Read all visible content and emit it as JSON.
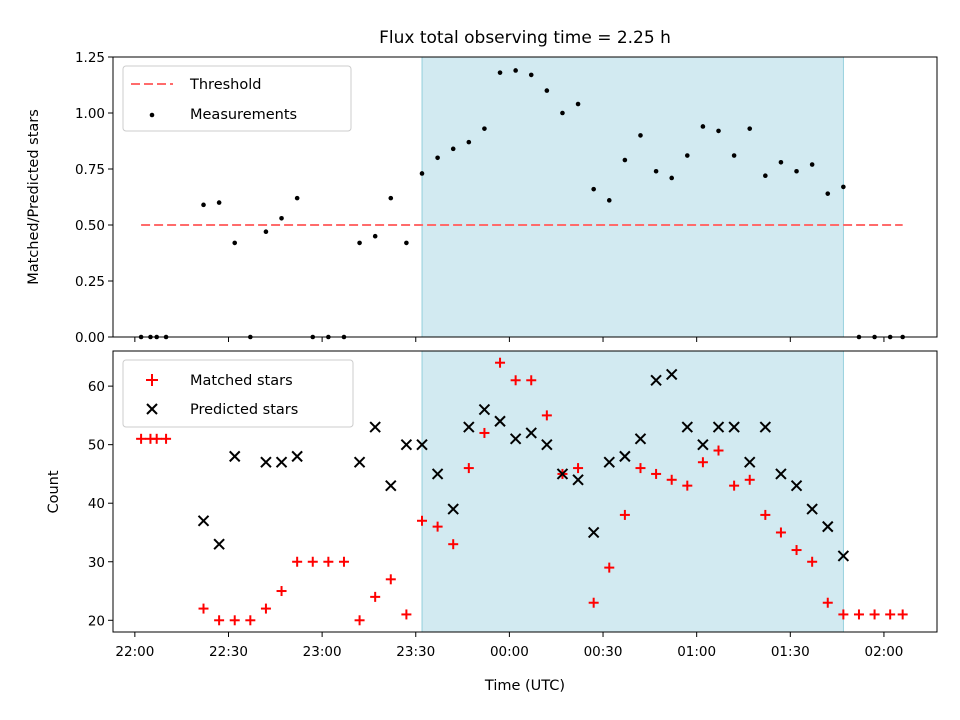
{
  "figure_title": "Flux total observing time = 2.25 h",
  "colors": {
    "shade": "#add8e6",
    "threshold": "#ff6b6b",
    "measurement": "#000000",
    "matched": "#ff0000",
    "predicted": "#000000"
  },
  "chart_data": [
    {
      "type": "scatter",
      "ylabel": "Matched/Predicted stars",
      "ylim": [
        0,
        1.25
      ],
      "yticks": [
        0.0,
        0.25,
        0.5,
        0.75,
        1.0,
        1.25
      ],
      "ytick_labels": [
        "0.00",
        "0.25",
        "0.50",
        "0.75",
        "1.00",
        "1.25"
      ],
      "x_time_range": [
        "21:53",
        "02:17"
      ],
      "xticks": [
        "22:00",
        "22:30",
        "23:00",
        "23:30",
        "00:00",
        "00:30",
        "01:00",
        "01:30",
        "02:00"
      ],
      "shaded_region": [
        "23:32",
        "01:47"
      ],
      "legend_position": "upper left",
      "threshold": {
        "name": "Threshold",
        "value": 0.5,
        "x": [
          "22:02",
          "02:06"
        ]
      },
      "series": [
        {
          "name": "Measurements",
          "marker": "dot",
          "points": [
            [
              "22:02",
              0.0
            ],
            [
              "22:05",
              0.0
            ],
            [
              "22:07",
              0.0
            ],
            [
              "22:10",
              0.0
            ],
            [
              "22:22",
              0.59
            ],
            [
              "22:27",
              0.6
            ],
            [
              "22:32",
              0.42
            ],
            [
              "22:37",
              0.0
            ],
            [
              "22:42",
              0.47
            ],
            [
              "22:47",
              0.53
            ],
            [
              "22:52",
              0.62
            ],
            [
              "22:57",
              0.0
            ],
            [
              "23:02",
              0.0
            ],
            [
              "23:07",
              0.0
            ],
            [
              "23:12",
              0.42
            ],
            [
              "23:17",
              0.45
            ],
            [
              "23:22",
              0.62
            ],
            [
              "23:27",
              0.42
            ],
            [
              "23:32",
              0.73
            ],
            [
              "23:37",
              0.8
            ],
            [
              "23:42",
              0.84
            ],
            [
              "23:47",
              0.87
            ],
            [
              "23:52",
              0.93
            ],
            [
              "23:57",
              1.18
            ],
            [
              "00:02",
              1.19
            ],
            [
              "00:07",
              1.17
            ],
            [
              "00:12",
              1.1
            ],
            [
              "00:17",
              1.0
            ],
            [
              "00:22",
              1.04
            ],
            [
              "00:27",
              0.66
            ],
            [
              "00:32",
              0.61
            ],
            [
              "00:37",
              0.79
            ],
            [
              "00:42",
              0.9
            ],
            [
              "00:47",
              0.74
            ],
            [
              "00:52",
              0.71
            ],
            [
              "00:57",
              0.81
            ],
            [
              "01:02",
              0.94
            ],
            [
              "01:07",
              0.92
            ],
            [
              "01:12",
              0.81
            ],
            [
              "01:17",
              0.93
            ],
            [
              "01:22",
              0.72
            ],
            [
              "01:27",
              0.78
            ],
            [
              "01:32",
              0.74
            ],
            [
              "01:37",
              0.77
            ],
            [
              "01:42",
              0.64
            ],
            [
              "01:47",
              0.67
            ],
            [
              "01:52",
              0.0
            ],
            [
              "01:57",
              0.0
            ],
            [
              "02:02",
              0.0
            ],
            [
              "02:06",
              0.0
            ]
          ]
        }
      ]
    },
    {
      "type": "scatter",
      "xlabel": "Time (UTC)",
      "ylabel": "Count",
      "ylim": [
        18,
        66
      ],
      "yticks": [
        20,
        30,
        40,
        50,
        60
      ],
      "ytick_labels": [
        "20",
        "30",
        "40",
        "50",
        "60"
      ],
      "x_time_range": [
        "21:53",
        "02:17"
      ],
      "xticks": [
        "22:00",
        "22:30",
        "23:00",
        "23:30",
        "00:00",
        "00:30",
        "01:00",
        "01:30",
        "02:00"
      ],
      "shaded_region": [
        "23:32",
        "01:47"
      ],
      "legend_position": "upper left",
      "series": [
        {
          "name": "Matched stars",
          "marker": "plus",
          "points": [
            [
              "22:02",
              51
            ],
            [
              "22:05",
              51
            ],
            [
              "22:07",
              51
            ],
            [
              "22:10",
              51
            ],
            [
              "22:22",
              22
            ],
            [
              "22:27",
              20
            ],
            [
              "22:32",
              20
            ],
            [
              "22:37",
              20
            ],
            [
              "22:42",
              22
            ],
            [
              "22:47",
              25
            ],
            [
              "22:52",
              30
            ],
            [
              "22:57",
              30
            ],
            [
              "23:02",
              30
            ],
            [
              "23:07",
              30
            ],
            [
              "23:12",
              20
            ],
            [
              "23:17",
              24
            ],
            [
              "23:22",
              27
            ],
            [
              "23:27",
              21
            ],
            [
              "23:32",
              37
            ],
            [
              "23:37",
              36
            ],
            [
              "23:42",
              33
            ],
            [
              "23:47",
              46
            ],
            [
              "23:52",
              52
            ],
            [
              "23:57",
              64
            ],
            [
              "00:02",
              61
            ],
            [
              "00:07",
              61
            ],
            [
              "00:12",
              55
            ],
            [
              "00:17",
              45
            ],
            [
              "00:22",
              46
            ],
            [
              "00:27",
              23
            ],
            [
              "00:32",
              29
            ],
            [
              "00:37",
              38
            ],
            [
              "00:42",
              46
            ],
            [
              "00:47",
              45
            ],
            [
              "00:52",
              44
            ],
            [
              "00:57",
              43
            ],
            [
              "01:02",
              47
            ],
            [
              "01:07",
              49
            ],
            [
              "01:12",
              43
            ],
            [
              "01:17",
              44
            ],
            [
              "01:22",
              38
            ],
            [
              "01:27",
              35
            ],
            [
              "01:32",
              32
            ],
            [
              "01:37",
              30
            ],
            [
              "01:42",
              23
            ],
            [
              "01:47",
              21
            ],
            [
              "01:52",
              21
            ],
            [
              "01:57",
              21
            ],
            [
              "02:02",
              21
            ],
            [
              "02:06",
              21
            ]
          ]
        },
        {
          "name": "Predicted stars",
          "marker": "x",
          "points": [
            [
              "22:22",
              37
            ],
            [
              "22:27",
              33
            ],
            [
              "22:32",
              48
            ],
            [
              "22:42",
              47
            ],
            [
              "22:47",
              47
            ],
            [
              "22:52",
              48
            ],
            [
              "23:12",
              47
            ],
            [
              "23:17",
              53
            ],
            [
              "23:22",
              43
            ],
            [
              "23:27",
              50
            ],
            [
              "23:32",
              50
            ],
            [
              "23:37",
              45
            ],
            [
              "23:42",
              39
            ],
            [
              "23:47",
              53
            ],
            [
              "23:52",
              56
            ],
            [
              "23:57",
              54
            ],
            [
              "00:02",
              51
            ],
            [
              "00:07",
              52
            ],
            [
              "00:12",
              50
            ],
            [
              "00:17",
              45
            ],
            [
              "00:22",
              44
            ],
            [
              "00:27",
              35
            ],
            [
              "00:32",
              47
            ],
            [
              "00:37",
              48
            ],
            [
              "00:42",
              51
            ],
            [
              "00:47",
              61
            ],
            [
              "00:52",
              62
            ],
            [
              "00:57",
              53
            ],
            [
              "01:02",
              50
            ],
            [
              "01:07",
              53
            ],
            [
              "01:12",
              53
            ],
            [
              "01:17",
              47
            ],
            [
              "01:22",
              53
            ],
            [
              "01:27",
              45
            ],
            [
              "01:32",
              43
            ],
            [
              "01:37",
              39
            ],
            [
              "01:42",
              36
            ],
            [
              "01:47",
              31
            ]
          ]
        }
      ]
    }
  ]
}
